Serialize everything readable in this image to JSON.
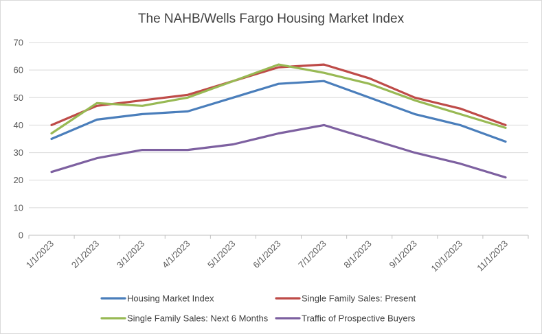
{
  "chart_data": {
    "type": "line",
    "title": "The NAHB/Wells Fargo Housing Market Index",
    "xlabel": "",
    "ylabel": "",
    "categories": [
      "1/1/2023",
      "2/1/2023",
      "3/1/2023",
      "4/1/2023",
      "5/1/2023",
      "6/1/2023",
      "7/1/2023",
      "8/1/2023",
      "9/1/2023",
      "10/1/2023",
      "11/1/2023"
    ],
    "ylim": [
      0,
      70
    ],
    "yticks": [
      0,
      10,
      20,
      30,
      40,
      50,
      60,
      70
    ],
    "grid": true,
    "legend": "bottom",
    "series": [
      {
        "name": "Housing Market Index",
        "color": "#4a7ebb",
        "values": [
          35,
          42,
          44,
          45,
          50,
          55,
          56,
          50,
          44,
          40,
          34
        ]
      },
      {
        "name": "Single Family Sales: Present",
        "color": "#be4b48",
        "values": [
          40,
          47,
          49,
          51,
          56,
          61,
          62,
          57,
          50,
          46,
          40
        ]
      },
      {
        "name": "Single Family Sales: Next 6 Months",
        "color": "#98b954",
        "values": [
          37,
          48,
          47,
          50,
          56,
          62,
          59,
          55,
          49,
          44,
          39
        ]
      },
      {
        "name": "Traffic of Prospective Buyers",
        "color": "#7d60a0",
        "values": [
          23,
          28,
          31,
          31,
          33,
          37,
          40,
          35,
          30,
          26,
          21
        ]
      }
    ]
  }
}
